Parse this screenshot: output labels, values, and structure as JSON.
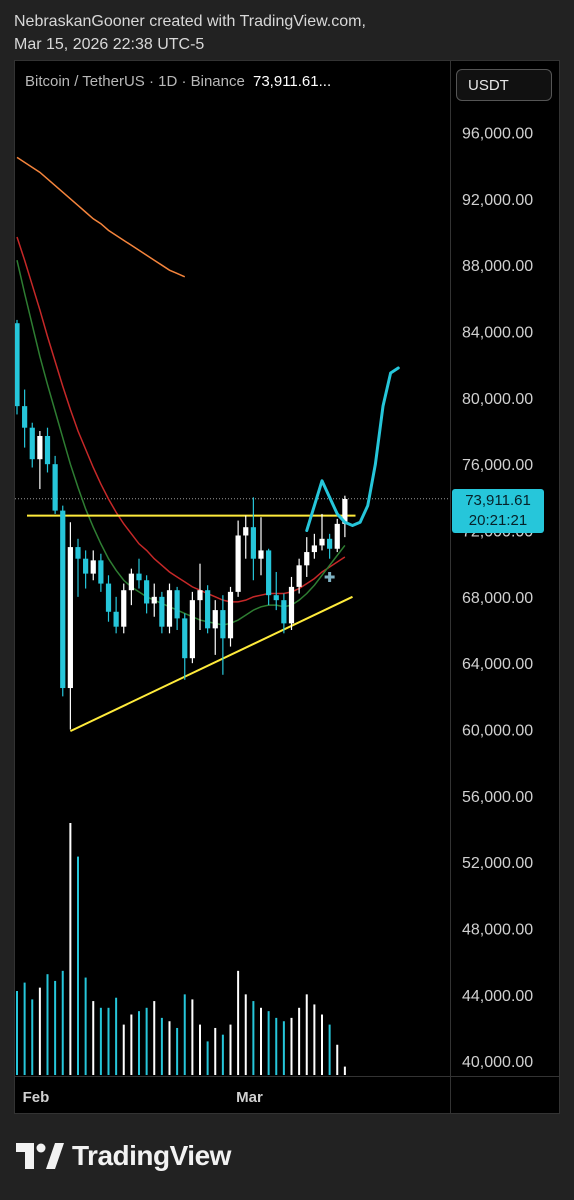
{
  "attribution": {
    "line1": "NebraskanGooner created with TradingView.com,",
    "line2": "Mar 15, 2026 22:38 UTC-5"
  },
  "legend": {
    "symbol": "Bitcoin / TetherUS · 1D · Binance",
    "price": "73,911.61..."
  },
  "currency_button": "USDT",
  "price_tag": {
    "price": "73,911.61",
    "countdown": "20:21:21"
  },
  "brand": "TradingView",
  "colors": {
    "up": "#ffffff",
    "down": "#26c6da",
    "ema_orange": "#f4843c",
    "ema_red": "#c62828",
    "ema_green": "#2e7d32",
    "projection": "#26c6da",
    "trendline": "#ffeb3b"
  },
  "chart_data": {
    "type": "candlestick",
    "symbol": "BTCUSDT",
    "interval": "1D",
    "exchange": "Binance",
    "last_price": 73911.61,
    "y_axis": {
      "ticks": [
        96000,
        92000,
        88000,
        84000,
        80000,
        76000,
        72000,
        68000,
        64000,
        60000,
        56000,
        52000,
        48000,
        44000,
        40000
      ],
      "tick_labels": [
        "96,000.00",
        "92,000.00",
        "88,000.00",
        "84,000.00",
        "80,000.00",
        "76,000.00",
        "72,000.00",
        "68,000.00",
        "64,000.00",
        "60,000.00",
        "56,000.00",
        "52,000.00",
        "48,000.00",
        "44,000.00",
        "40,000.00"
      ]
    },
    "x_axis": {
      "labels": [
        {
          "label": "Feb",
          "index": 1
        },
        {
          "label": "Mar",
          "index": 29
        }
      ]
    },
    "candles": [
      [
        84500,
        84700,
        79000,
        79500
      ],
      [
        79500,
        80500,
        77000,
        78200
      ],
      [
        78200,
        78500,
        75800,
        76300
      ],
      [
        76300,
        78000,
        74500,
        77700
      ],
      [
        77700,
        78200,
        75500,
        76000
      ],
      [
        76000,
        76500,
        73000,
        73200
      ],
      [
        73200,
        73500,
        62000,
        62500
      ],
      [
        62500,
        72500,
        60000,
        71000
      ],
      [
        71000,
        71500,
        68000,
        70300
      ],
      [
        70300,
        70800,
        68500,
        69400
      ],
      [
        69400,
        70800,
        69000,
        70200
      ],
      [
        70200,
        70600,
        68300,
        68800
      ],
      [
        68800,
        69300,
        66500,
        67100
      ],
      [
        67100,
        68000,
        65800,
        66200
      ],
      [
        66200,
        68800,
        65800,
        68400
      ],
      [
        68400,
        69700,
        67500,
        69400
      ],
      [
        69400,
        70300,
        68500,
        69000
      ],
      [
        69000,
        69300,
        67000,
        67600
      ],
      [
        67600,
        68800,
        66800,
        68000
      ],
      [
        68000,
        68300,
        65800,
        66200
      ],
      [
        66200,
        68800,
        65800,
        68400
      ],
      [
        68400,
        68600,
        66000,
        66700
      ],
      [
        66700,
        67000,
        63000,
        64300
      ],
      [
        64300,
        68300,
        64000,
        67800
      ],
      [
        67800,
        70000,
        66000,
        68400
      ],
      [
        68400,
        68700,
        65800,
        66100
      ],
      [
        66100,
        67800,
        64500,
        67200
      ],
      [
        67200,
        68100,
        63300,
        65500
      ],
      [
        65500,
        68600,
        65000,
        68300
      ],
      [
        68300,
        72600,
        68000,
        71700
      ],
      [
        71700,
        72900,
        70300,
        72200
      ],
      [
        72200,
        74000,
        69000,
        70300
      ],
      [
        70300,
        72800,
        69300,
        70800
      ],
      [
        70800,
        70900,
        67500,
        68100
      ],
      [
        68100,
        69500,
        67200,
        67800
      ],
      [
        67800,
        68200,
        65800,
        66400
      ],
      [
        66400,
        69200,
        66000,
        68600
      ],
      [
        68600,
        70300,
        68200,
        69900
      ],
      [
        69900,
        71600,
        69200,
        70700
      ],
      [
        70700,
        71800,
        70300,
        71100
      ],
      [
        71100,
        73000,
        70800,
        71500
      ],
      [
        71500,
        71800,
        70300,
        70900
      ],
      [
        70900,
        72700,
        70700,
        72400
      ],
      [
        72400,
        74100,
        71600,
        73900
      ]
    ],
    "volume_relative": [
      0.5,
      0.55,
      0.45,
      0.52,
      0.6,
      0.56,
      0.62,
      1.5,
      1.3,
      0.58,
      0.44,
      0.4,
      0.4,
      0.46,
      0.3,
      0.36,
      0.38,
      0.4,
      0.44,
      0.34,
      0.32,
      0.28,
      0.48,
      0.45,
      0.3,
      0.2,
      0.28,
      0.24,
      0.3,
      0.62,
      0.48,
      0.44,
      0.4,
      0.38,
      0.34,
      0.32,
      0.34,
      0.4,
      0.48,
      0.42,
      0.36,
      0.3,
      0.18,
      0.05
    ],
    "ema_orange": {
      "start_index": 0,
      "values": [
        94500,
        94200,
        93900,
        93600,
        93200,
        92800,
        92400,
        92000,
        91600,
        91200,
        90800,
        90500,
        90100,
        89800,
        89500,
        89200,
        88900,
        88600,
        88300,
        88000,
        87700,
        87500,
        87300
      ]
    },
    "ema_red": [
      89700,
      88300,
      86800,
      85300,
      83700,
      82200,
      80700,
      79300,
      78000,
      76900,
      75800,
      74800,
      73900,
      73100,
      72400,
      71800,
      71200,
      70800,
      70300,
      69900,
      69500,
      69200,
      68900,
      68600,
      68400,
      68200,
      68000,
      67800,
      67700,
      67700,
      67800,
      68000,
      68100,
      68200,
      68200,
      68200,
      68300,
      68500,
      68800,
      69100,
      69500,
      69800,
      70100,
      70400
    ],
    "ema_green": [
      88300,
      86300,
      84400,
      82500,
      80800,
      79200,
      77600,
      76000,
      74600,
      73300,
      72200,
      71200,
      70300,
      69600,
      69000,
      68600,
      68300,
      68000,
      67800,
      67600,
      67400,
      67200,
      67000,
      66800,
      66600,
      66500,
      66400,
      66300,
      66400,
      66600,
      66900,
      67200,
      67400,
      67500,
      67500,
      67400,
      67500,
      67800,
      68200,
      68700,
      69300,
      69900,
      70500,
      71100
    ],
    "projection": [
      [
        38,
        72000
      ],
      [
        39,
        73500
      ],
      [
        40,
        75000
      ],
      [
        41,
        74000
      ],
      [
        42,
        73000
      ],
      [
        43,
        72500
      ],
      [
        44,
        72300
      ],
      [
        45,
        72500
      ],
      [
        46,
        73500
      ],
      [
        47,
        76000
      ],
      [
        48,
        79500
      ],
      [
        49,
        81500
      ],
      [
        50,
        81800
      ]
    ],
    "trendlines": [
      {
        "type": "horizontal",
        "from_index": 0,
        "to_index": 44,
        "price": 72900
      },
      {
        "type": "rising",
        "from": [
          7,
          59900
        ],
        "to": [
          44,
          68000
        ]
      }
    ],
    "marker": {
      "type": "plus",
      "index": 41,
      "price": 69200
    }
  }
}
